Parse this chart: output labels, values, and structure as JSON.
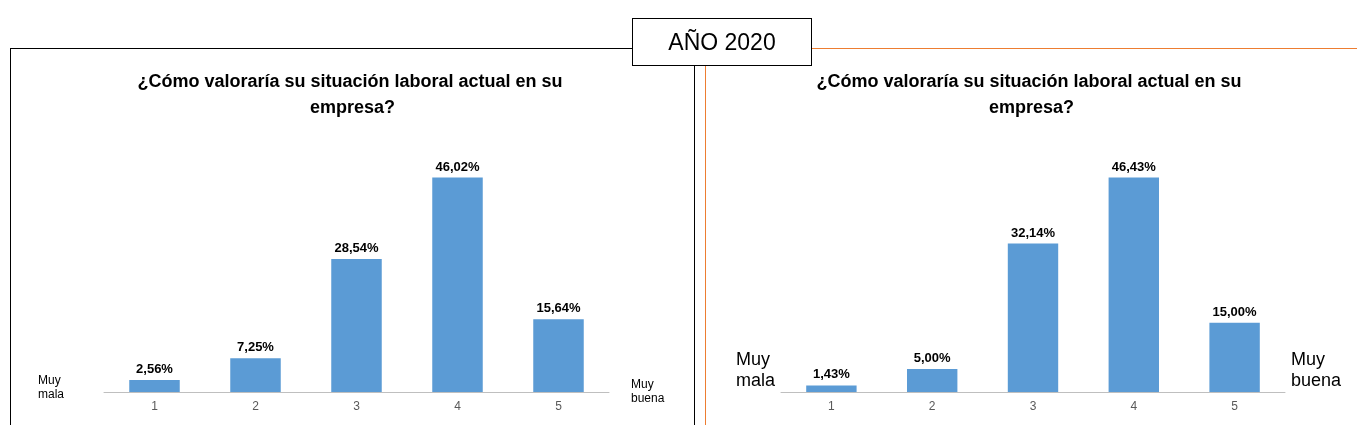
{
  "chart_data": [
    {
      "type": "bar",
      "title": "¿Cómo valoraría su situación laboral actual en su empresa?",
      "categories": [
        "1",
        "2",
        "3",
        "4",
        "5"
      ],
      "values": [
        2.56,
        7.25,
        28.54,
        46.02,
        15.64
      ],
      "color": "#5b9bd5",
      "value_labels": [
        "2,56%",
        "7,25%",
        "28,54%",
        "46,02%",
        "15,64%"
      ],
      "grid": false,
      "annotations": [
        "AÑO 2020",
        "Muy mala",
        "Muy buena"
      ]
    },
    {
      "type": "bar",
      "title": "¿Cómo valoraría su situación laboral actual en su empresa?",
      "categories": [
        "1",
        "2",
        "3",
        "4",
        "5"
      ],
      "values": [
        1.43,
        5.0,
        32.14,
        46.43,
        15.0
      ],
      "color": "#5b9bd5",
      "value_labels": [
        "1,43%",
        "5,00%",
        "32,14%",
        "46,43%",
        "15,00%"
      ],
      "grid": false,
      "annotations": [
        "Muy mala",
        "Muy buena"
      ]
    }
  ]
}
